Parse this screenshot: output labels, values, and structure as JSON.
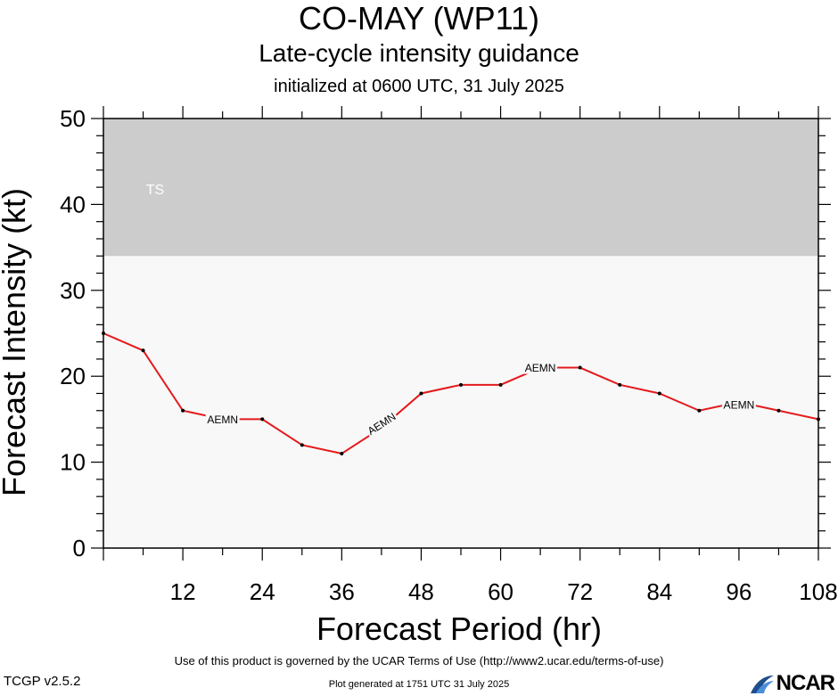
{
  "chart_data": {
    "type": "line",
    "title": "CO-MAY (WP11)",
    "subtitle": "Late-cycle intensity guidance",
    "initialized": "initialized at 0600 UTC, 31 July 2025",
    "xlabel": "Forecast Period (hr)",
    "ylabel": "Forecast Intensity (kt)",
    "xlim": [
      0,
      108
    ],
    "ylim": [
      0,
      50
    ],
    "x_ticks": [
      12,
      24,
      36,
      48,
      60,
      72,
      84,
      96,
      108
    ],
    "y_ticks": [
      0,
      10,
      20,
      30,
      40,
      50
    ],
    "bands": [
      {
        "label": "TS",
        "from": 34,
        "to": 50,
        "color": "#cccccc"
      }
    ],
    "background_color": "#f8f8f8",
    "series": [
      {
        "name": "AEMN",
        "color": "#e41a1c",
        "x": [
          0,
          6,
          12,
          18,
          24,
          30,
          36,
          42,
          48,
          54,
          60,
          66,
          72,
          78,
          84,
          90,
          96,
          102,
          108
        ],
        "y": [
          25,
          23,
          16,
          15,
          15,
          12,
          11,
          14,
          18,
          19,
          19,
          21,
          21,
          19,
          18,
          16,
          17,
          16,
          15
        ],
        "labels": [
          {
            "text": "AEMN",
            "x": 18,
            "y": 15,
            "angle": 0
          },
          {
            "text": "AEMN",
            "x": 42,
            "y": 14.5,
            "angle": -33
          },
          {
            "text": "AEMN",
            "x": 66,
            "y": 21,
            "angle": 0
          },
          {
            "text": "AEMN",
            "x": 96,
            "y": 16.7,
            "angle": 0
          }
        ]
      }
    ]
  },
  "footer": {
    "terms": "Use of this product is governed by the UCAR Terms of Use (http://www2.ucar.edu/terms-of-use)",
    "version": "TCGP v2.5.2",
    "generated": "Plot generated at 1751 UTC   31 July 2025",
    "logo_text": "NCAR"
  }
}
